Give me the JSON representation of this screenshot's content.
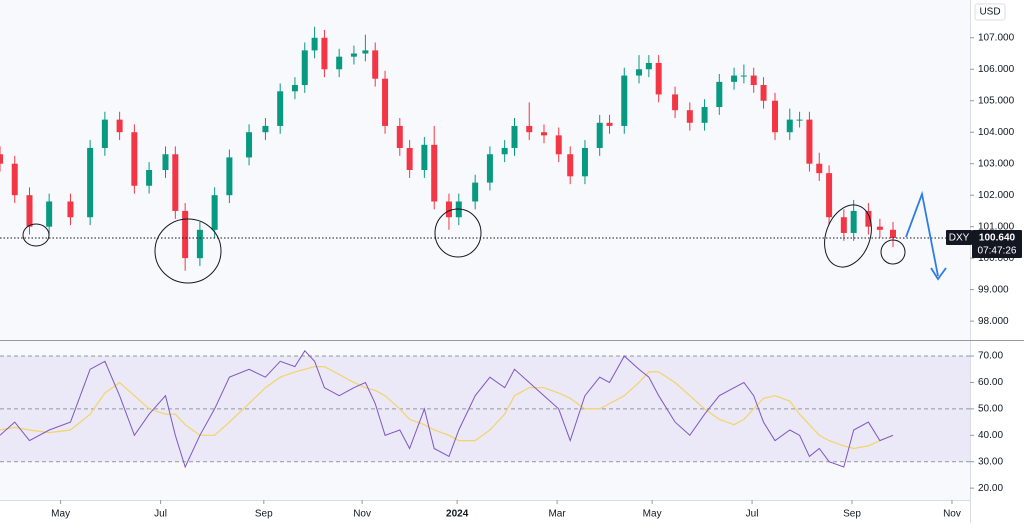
{
  "chart_data": [
    {
      "type": "candlestick",
      "axis_unit": "USD",
      "x": [
        0,
        9,
        18,
        30,
        43,
        55,
        64,
        73,
        82,
        91,
        101,
        107,
        113,
        122,
        131,
        140,
        152,
        162,
        171,
        180,
        186,
        192,
        198,
        207,
        216,
        223,
        229,
        235,
        244,
        250,
        259,
        265,
        274,
        280,
        290,
        299,
        308,
        314,
        323,
        332,
        341,
        348,
        357,
        366,
        372,
        381,
        390,
        396,
        402,
        412,
        421,
        430,
        439,
        448,
        454,
        460,
        466,
        473,
        482,
        488,
        494,
        500,
        506,
        515,
        521,
        530,
        537,
        545
      ],
      "open": [
        103.3,
        103.0,
        102.0,
        101.0,
        101.8,
        101.3,
        103.5,
        104.4,
        104.0,
        102.3,
        102.8,
        103.3,
        101.5,
        100.0,
        100.9,
        102.0,
        103.2,
        104.0,
        104.2,
        105.3,
        105.5,
        106.6,
        107.0,
        106.0,
        106.4,
        106.5,
        106.6,
        105.7,
        104.2,
        103.5,
        102.8,
        103.6,
        101.8,
        101.3,
        101.8,
        102.4,
        103.3,
        103.5,
        104.2,
        104.0,
        103.9,
        103.3,
        102.6,
        103.5,
        104.3,
        104.2,
        105.8,
        106.0,
        106.2,
        105.2,
        104.7,
        104.3,
        104.8,
        105.6,
        105.8,
        105.8,
        105.5,
        105.0,
        104.0,
        104.4,
        104.4,
        103.0,
        102.7,
        101.3,
        100.8,
        101.5,
        101.0,
        100.9
      ],
      "high": [
        103.55,
        103.25,
        102.25,
        102.05,
        102.05,
        103.75,
        104.65,
        104.65,
        104.25,
        103.05,
        103.55,
        103.55,
        101.75,
        101.15,
        102.25,
        103.45,
        104.25,
        104.45,
        105.55,
        105.75,
        106.85,
        107.35,
        107.25,
        106.65,
        106.75,
        107.1,
        106.85,
        105.95,
        104.45,
        103.75,
        103.85,
        104.2,
        102.05,
        102.05,
        102.65,
        103.55,
        103.75,
        104.45,
        104.95,
        104.25,
        104.15,
        103.55,
        103.75,
        104.55,
        104.55,
        106.05,
        106.45,
        106.45,
        106.45,
        105.45,
        104.95,
        105.05,
        105.85,
        106.05,
        106.15,
        106.05,
        105.75,
        105.25,
        104.75,
        104.65,
        104.65,
        103.35,
        102.95,
        101.55,
        101.85,
        101.75,
        101.25,
        101.15
      ],
      "low": [
        102.75,
        101.75,
        100.75,
        100.75,
        101.05,
        101.05,
        103.25,
        103.75,
        102.05,
        102.05,
        102.55,
        101.25,
        99.6,
        99.75,
        100.65,
        101.75,
        102.95,
        103.75,
        103.95,
        105.05,
        105.25,
        106.35,
        105.75,
        105.75,
        106.15,
        106.25,
        105.45,
        103.95,
        103.25,
        102.55,
        102.55,
        101.55,
        100.9,
        101.05,
        101.55,
        102.15,
        103.05,
        103.25,
        103.75,
        103.65,
        103.05,
        102.35,
        102.35,
        103.25,
        103.95,
        103.95,
        105.55,
        105.75,
        104.95,
        104.45,
        104.05,
        104.05,
        104.55,
        105.35,
        105.55,
        105.25,
        104.75,
        103.75,
        103.75,
        104.15,
        102.75,
        102.45,
        101.05,
        100.55,
        100.55,
        100.75,
        100.65,
        100.35
      ],
      "close": [
        103.0,
        102.0,
        101.0,
        101.8,
        101.3,
        103.5,
        104.4,
        104.0,
        102.3,
        102.8,
        103.3,
        101.5,
        100.0,
        100.9,
        102.0,
        103.2,
        104.0,
        104.2,
        105.3,
        105.5,
        106.6,
        107.0,
        106.0,
        106.4,
        106.5,
        106.6,
        105.7,
        104.2,
        103.5,
        102.8,
        103.6,
        101.8,
        101.3,
        101.8,
        102.4,
        103.3,
        103.5,
        104.2,
        104.0,
        103.9,
        103.3,
        102.6,
        103.5,
        104.3,
        104.2,
        105.8,
        106.0,
        106.2,
        105.2,
        104.7,
        104.3,
        104.8,
        105.6,
        105.8,
        105.8,
        105.5,
        105.0,
        104.0,
        104.4,
        104.4,
        103.0,
        102.7,
        101.3,
        100.8,
        101.5,
        101.0,
        100.9,
        100.64
      ],
      "up_color": "#089981",
      "down_color": "#f23645",
      "xlim": [
        0,
        592
      ],
      "ylim": [
        97.4,
        108.2
      ],
      "yticks": [
        {
          "value": 98,
          "label": "98.000"
        },
        {
          "value": 99,
          "label": "99.000"
        },
        {
          "value": 100,
          "label": "100.000"
        },
        {
          "value": 101,
          "label": "101.000"
        },
        {
          "value": 102,
          "label": "102.000"
        },
        {
          "value": 103,
          "label": "103.000"
        },
        {
          "value": 104,
          "label": "104.000"
        },
        {
          "value": 105,
          "label": "105.000"
        },
        {
          "value": 106,
          "label": "106.000"
        },
        {
          "value": 107,
          "label": "107.000"
        }
      ],
      "xticks": [
        {
          "value": 37,
          "label": "May"
        },
        {
          "value": 98,
          "label": "Jul"
        },
        {
          "value": 161,
          "label": "Sep"
        },
        {
          "value": 221,
          "label": "Nov"
        },
        {
          "value": 279,
          "label": "2024"
        },
        {
          "value": 340,
          "label": "Mar"
        },
        {
          "value": 398,
          "label": "May"
        },
        {
          "value": 459,
          "label": "Jul"
        },
        {
          "value": 520,
          "label": "Sep"
        },
        {
          "value": 581,
          "label": "Nov"
        }
      ],
      "price_tag": {
        "symbol": "DXY",
        "value": 100.64,
        "label": "100.640",
        "countdown": "07:47:26"
      }
    },
    {
      "type": "line",
      "series": [
        {
          "color": "#7e57c2",
          "values": [
            40,
            45,
            38,
            42,
            45,
            65,
            68,
            55,
            40,
            48,
            55,
            40,
            28,
            40,
            50,
            62,
            65,
            62,
            68,
            66,
            72,
            68,
            58,
            55,
            58,
            60,
            52,
            40,
            42,
            35,
            50,
            35,
            32,
            42,
            55,
            62,
            58,
            65,
            60,
            55,
            50,
            38,
            55,
            62,
            60,
            70,
            65,
            62,
            55,
            45,
            40,
            48,
            55,
            58,
            60,
            55,
            45,
            38,
            42,
            40,
            32,
            35,
            30,
            28,
            42,
            45,
            38,
            40
          ]
        },
        {
          "color": "#f2d46b",
          "values": [
            42,
            43,
            42,
            41,
            42,
            48,
            56,
            60,
            55,
            50,
            48,
            48,
            44,
            40,
            40,
            45,
            52,
            58,
            62,
            64,
            65,
            66,
            66,
            63,
            60,
            58,
            57,
            55,
            50,
            46,
            44,
            42,
            40,
            38,
            38,
            42,
            48,
            55,
            58,
            58,
            56,
            54,
            50,
            50,
            52,
            55,
            60,
            64,
            64,
            60,
            55,
            50,
            46,
            44,
            46,
            50,
            54,
            55,
            53,
            48,
            44,
            40,
            38,
            36,
            35,
            36,
            38,
            40
          ]
        }
      ],
      "ylim": [
        15.5,
        75.7
      ],
      "yticks": [
        {
          "value": 20,
          "label": "20.00"
        },
        {
          "value": 30,
          "label": "30.00"
        },
        {
          "value": 40,
          "label": "40.00"
        },
        {
          "value": 50,
          "label": "50.00"
        },
        {
          "value": 60,
          "label": "60.00"
        },
        {
          "value": 70,
          "label": "70.00"
        }
      ],
      "band": [
        30,
        70
      ],
      "levels": [
        30,
        50,
        70
      ],
      "band_color": "#7e57c2"
    }
  ]
}
